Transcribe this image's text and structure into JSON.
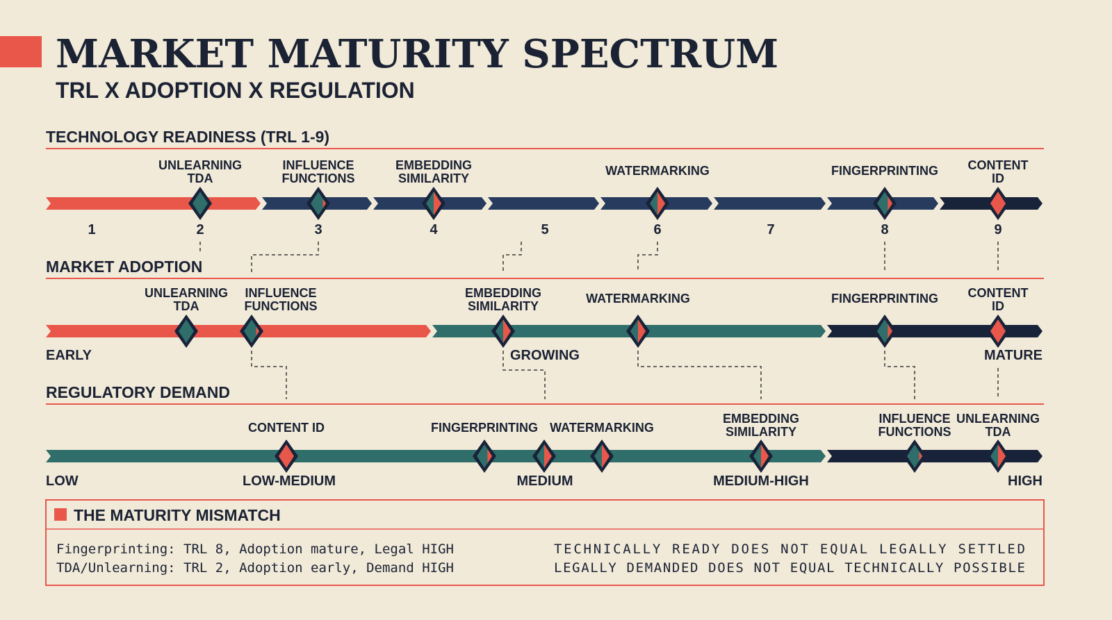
{
  "title": "MARKET MATURITY SPECTRUM",
  "subtitle": "TRL X ADOPTION X REGULATION",
  "colors": {
    "background": "#f2ead9",
    "red": "#e8574a",
    "navy": "#263b5e",
    "dark_navy": "#182238",
    "teal": "#2f6e6a",
    "text": "#1a2233"
  },
  "sections": [
    {
      "heading": "TECHNOLOGY READINESS (TRL 1-9)",
      "scale": [
        "1",
        "2",
        "3",
        "4",
        "5",
        "6",
        "7",
        "8",
        "9"
      ],
      "markers": [
        {
          "label": [
            "UNLEARNING",
            "TDA"
          ],
          "value": "2"
        },
        {
          "label": [
            "INFLUENCE",
            "FUNCTIONS"
          ],
          "value": "3"
        },
        {
          "label": [
            "EMBEDDING",
            "SIMILARITY"
          ],
          "value": "4"
        },
        {
          "label": [
            "WATERMARKING"
          ],
          "value": "6"
        },
        {
          "label": [
            "FINGERPRINTING"
          ],
          "value": "8"
        },
        {
          "label": [
            "CONTENT",
            "ID"
          ],
          "value": "9"
        }
      ]
    },
    {
      "heading": "MARKET ADOPTION",
      "scale": [
        "EARLY",
        "GROWING",
        "MATURE"
      ],
      "markers": [
        {
          "label": [
            "UNLEARNING",
            "TDA"
          ],
          "value": "EARLY"
        },
        {
          "label": [
            "INFLUENCE",
            "FUNCTIONS"
          ],
          "value": "EARLY"
        },
        {
          "label": [
            "EMBEDDING",
            "SIMILARITY"
          ],
          "value": "GROWING"
        },
        {
          "label": [
            "WATERMARKING"
          ],
          "value": "GROWING"
        },
        {
          "label": [
            "FINGERPRINTING"
          ],
          "value": "MATURE"
        },
        {
          "label": [
            "CONTENT",
            "ID"
          ],
          "value": "MATURE"
        }
      ]
    },
    {
      "heading": "REGULATORY DEMAND",
      "scale": [
        "LOW",
        "LOW-MEDIUM",
        "MEDIUM",
        "MEDIUM-HIGH",
        "HIGH"
      ],
      "markers": [
        {
          "label": [
            "CONTENT ID"
          ],
          "value": "LOW-MEDIUM"
        },
        {
          "label": [
            "FINGERPRINTING"
          ],
          "value": "MEDIUM"
        },
        {
          "label": [
            "WATERMARKING"
          ],
          "value": "MEDIUM"
        },
        {
          "label": [],
          "value": "MEDIUM"
        },
        {
          "label": [
            "EMBEDDING",
            "SIMILARITY"
          ],
          "value": "MEDIUM-HIGH"
        },
        {
          "label": [
            "INFLUENCE",
            "FUNCTIONS"
          ],
          "value": "HIGH"
        },
        {
          "label": [
            "UNLEARNING",
            "TDA"
          ],
          "value": "HIGH"
        }
      ]
    }
  ],
  "mismatch": {
    "heading": "THE MATURITY MISMATCH",
    "left": [
      "Fingerprinting: TRL 8, Adoption mature, Legal HIGH",
      "TDA/Unlearning: TRL 2, Adoption early, Demand HIGH"
    ],
    "right": [
      "TECHNICALLY READY DOES NOT EQUAL LEGALLY SETTLED",
      "LEGALLY DEMANDED DOES NOT EQUAL TECHNICALLY POSSIBLE"
    ]
  }
}
